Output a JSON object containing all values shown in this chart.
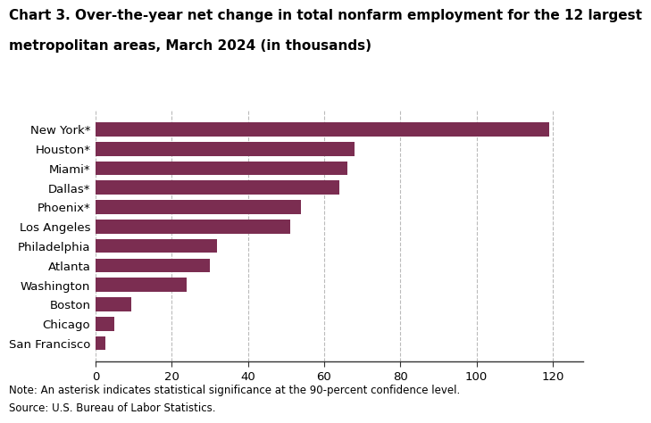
{
  "title_line1": "Chart 3. Over-the-year net change in total nonfarm employment for the 12 largest",
  "title_line2": "metropolitan areas, March 2024 (in thousands)",
  "categories": [
    "San Francisco",
    "Chicago",
    "Boston",
    "Washington",
    "Atlanta",
    "Philadelphia",
    "Los Angeles",
    "Phoenix*",
    "Dallas*",
    "Miami*",
    "Houston*",
    "New York*"
  ],
  "values": [
    2.5,
    5.0,
    9.5,
    24.0,
    30.0,
    32.0,
    51.0,
    54.0,
    64.0,
    66.0,
    68.0,
    119.0
  ],
  "bar_color": "#7b2d51",
  "xlim": [
    0,
    128
  ],
  "xticks": [
    0,
    20,
    40,
    60,
    80,
    100,
    120
  ],
  "note": "Note: An asterisk indicates statistical significance at the 90-percent confidence level.",
  "source": "Source: U.S. Bureau of Labor Statistics.",
  "background_color": "#ffffff",
  "grid_color": "#bbbbbb",
  "title_fontsize": 11,
  "axis_fontsize": 9.5,
  "note_fontsize": 8.5
}
